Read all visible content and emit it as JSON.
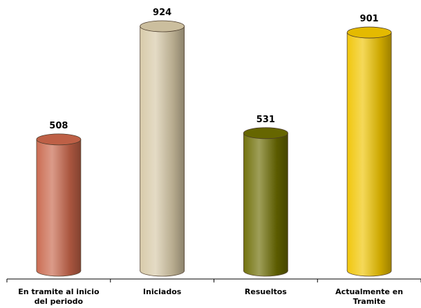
{
  "chart_data": {
    "type": "bar",
    "style": "3d-cylinder",
    "categories": [
      [
        "En tramite al inicio",
        "del periodo"
      ],
      [
        "Iniciados"
      ],
      [
        "Resueltos"
      ],
      [
        "Actualmente en",
        "Tramite"
      ]
    ],
    "values": [
      508,
      924,
      531,
      901
    ],
    "colors": [
      "#c8654a",
      "#d6c8a6",
      "#6b6b00",
      "#f0c400"
    ],
    "data_labels": true,
    "ylim": [
      0,
      924
    ],
    "grid": false,
    "legend": "none"
  }
}
